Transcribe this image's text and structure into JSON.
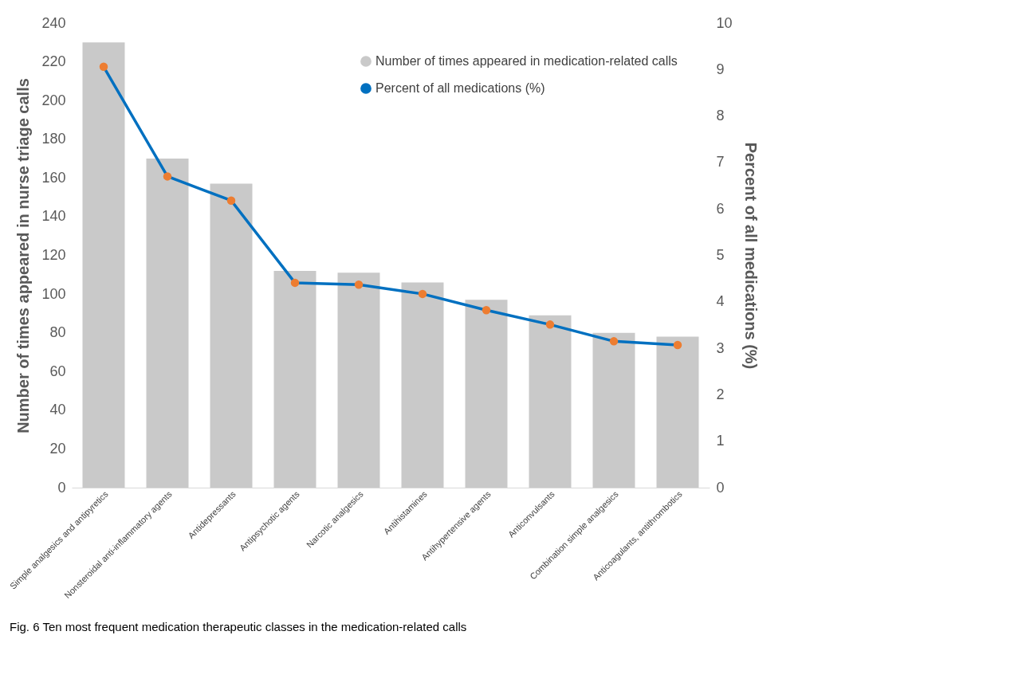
{
  "chart_data": {
    "type": "bar",
    "categories": [
      "Simple analgesics and antipyretics",
      "Nonsteroidal anti-inflammatory agents",
      "Antidepressants",
      "Antipsychotic agents",
      "Narcotic analgesics",
      "Antihistamines",
      "Antihypertensive agents",
      "Anticonvulsants",
      "Combination simple analgesics",
      "Anticoagulants, antithrombotics"
    ],
    "series": [
      {
        "name": "Number of times appeared in medication-related calls",
        "color": "#c9c9c9",
        "values": [
          230,
          170,
          157,
          112,
          111,
          106,
          97,
          89,
          80,
          78
        ]
      },
      {
        "name": "Percent of all medications (%)",
        "type": "line",
        "axis": "y2",
        "color": "#0070c0",
        "values": [
          9.06,
          6.7,
          6.18,
          4.41,
          4.37,
          4.17,
          3.82,
          3.51,
          3.15,
          3.07
        ]
      }
    ],
    "ylabel": "Number of times appeared in nurse triage calls",
    "y2label": "Percent of all medications (%)",
    "ylim": [
      0,
      240
    ],
    "yticks": [
      0,
      20,
      40,
      60,
      80,
      100,
      120,
      140,
      160,
      180,
      200,
      220,
      240
    ],
    "y2lim": [
      0,
      10
    ],
    "y2ticks": [
      0,
      1,
      2,
      3,
      4,
      5,
      6,
      7,
      8,
      9,
      10
    ],
    "marker": "circle",
    "legend": "top right",
    "grid": false,
    "annotations": [
      "Fig. 6 Ten most frequent medication therapeutic classes in the medication-related calls"
    ]
  }
}
